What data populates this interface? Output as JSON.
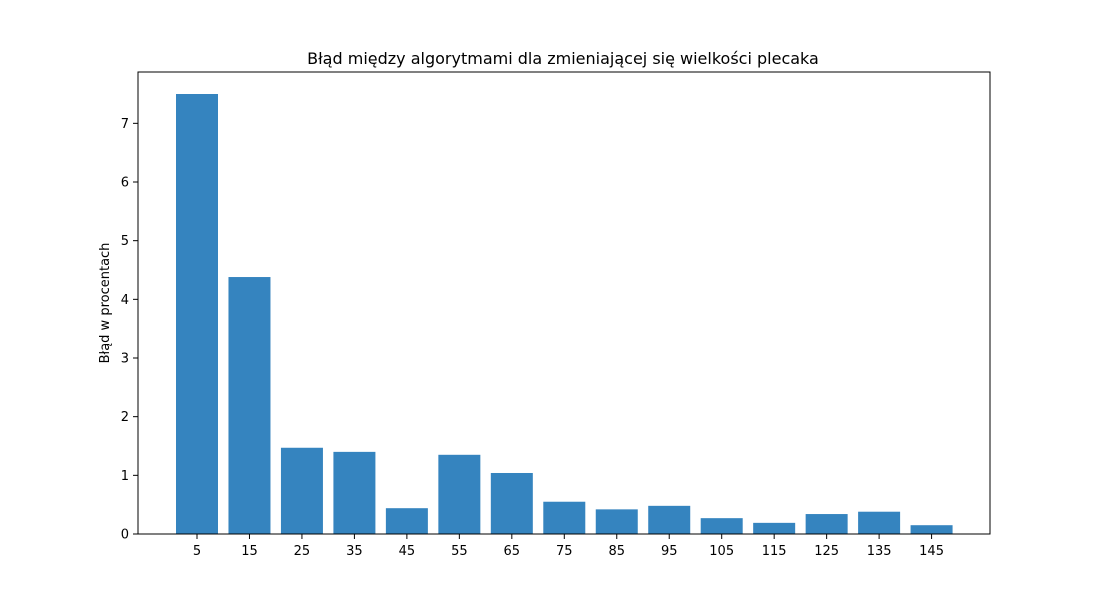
{
  "chart_data": {
    "type": "bar",
    "title": "Błąd między algorytmami dla zmieniającej się wielkości plecaka",
    "xlabel": "",
    "ylabel": "Błąd w procentach",
    "categories": [
      "5",
      "15",
      "25",
      "35",
      "45",
      "55",
      "65",
      "75",
      "85",
      "95",
      "105",
      "115",
      "125",
      "135",
      "145"
    ],
    "values": [
      7.5,
      4.38,
      1.47,
      1.4,
      0.44,
      1.35,
      1.04,
      0.55,
      0.42,
      0.48,
      0.27,
      0.19,
      0.34,
      0.38,
      0.15
    ],
    "yticks": [
      "0",
      "1",
      "2",
      "3",
      "4",
      "5",
      "6",
      "7"
    ],
    "ylim": [
      0,
      7.875
    ],
    "grid": false,
    "colors": {
      "bar": "#3584bf",
      "axis": "#000000"
    }
  }
}
